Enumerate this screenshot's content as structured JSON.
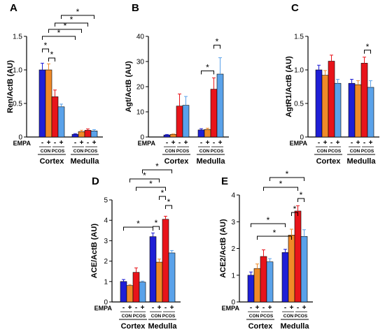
{
  "colors": {
    "con_minus": "#1f1fd6",
    "con_plus": "#f08a28",
    "pcos_minus": "#e8141a",
    "pcos_plus": "#5aa2ea",
    "axis": "#000000"
  },
  "labels": {
    "empa": "EMPA",
    "minus": "-",
    "plus": "+",
    "con": "CON",
    "pcos": "PCOS",
    "sig": "*"
  },
  "chart_data": [
    {
      "panel_letter": "A",
      "type": "bar",
      "ylabel": "Ren/ActB (AU)",
      "ylim": [
        0,
        1.5
      ],
      "yticks": [
        0,
        0.5,
        1.0,
        1.5
      ],
      "ytick_labels": [
        "0",
        "0.5",
        "1.0",
        "1.5"
      ],
      "regions": [
        "Cortex",
        "Medulla"
      ],
      "series": [
        {
          "group": "CON",
          "empa": "-",
          "values": [
            1.0,
            0.04
          ],
          "errors": [
            0.1,
            0.01
          ]
        },
        {
          "group": "CON",
          "empa": "+",
          "values": [
            1.0,
            0.08
          ],
          "errors": [
            0.09,
            0.02
          ]
        },
        {
          "group": "PCOS",
          "empa": "-",
          "values": [
            0.6,
            0.1
          ],
          "errors": [
            0.1,
            0.02
          ]
        },
        {
          "group": "PCOS",
          "empa": "+",
          "values": [
            0.45,
            0.09
          ],
          "errors": [
            0.04,
            0.02
          ]
        }
      ],
      "significance": [
        {
          "from": [
            0,
            0
          ],
          "to": [
            0,
            1
          ]
        },
        {
          "from": [
            0,
            1
          ],
          "to": [
            0,
            2
          ]
        },
        {
          "from": [
            0,
            0
          ],
          "to": [
            1,
            0
          ]
        },
        {
          "from": [
            0,
            1
          ],
          "to": [
            1,
            1
          ]
        },
        {
          "from": [
            0,
            2
          ],
          "to": [
            1,
            2
          ]
        },
        {
          "from": [
            0,
            3
          ],
          "to": [
            1,
            3
          ]
        }
      ]
    },
    {
      "panel_letter": "B",
      "type": "bar",
      "ylabel": "Agt/ActB (AU)",
      "ylim": [
        0,
        40
      ],
      "yticks": [
        0,
        10,
        20,
        30,
        40
      ],
      "ytick_labels": [
        "0",
        "10",
        "20",
        "30",
        "40"
      ],
      "regions": [
        "Cortex",
        "Medulla"
      ],
      "series": [
        {
          "group": "CON",
          "empa": "-",
          "values": [
            0.8,
            2.8
          ],
          "errors": [
            0.2,
            0.5
          ]
        },
        {
          "group": "CON",
          "empa": "+",
          "values": [
            1.0,
            3.0
          ],
          "errors": [
            0.2,
            0.5
          ]
        },
        {
          "group": "PCOS",
          "empa": "-",
          "values": [
            12.3,
            19.0
          ],
          "errors": [
            4.8,
            4.5
          ]
        },
        {
          "group": "PCOS",
          "empa": "+",
          "values": [
            12.6,
            25.0
          ],
          "errors": [
            3.5,
            6.5
          ]
        }
      ],
      "significance": [
        {
          "from": [
            1,
            0
          ],
          "to": [
            1,
            2
          ]
        },
        {
          "from": [
            1,
            2
          ],
          "to": [
            1,
            3
          ]
        }
      ]
    },
    {
      "panel_letter": "C",
      "type": "bar",
      "ylabel": "AgtR1/ActB (AU)",
      "ylim": [
        0,
        1.5
      ],
      "yticks": [
        0,
        0.5,
        1.0,
        1.5
      ],
      "ytick_labels": [
        "0",
        "0.5",
        "1.0",
        "1.5"
      ],
      "regions": [
        "Cortex",
        "Medulla"
      ],
      "series": [
        {
          "group": "CON",
          "empa": "-",
          "values": [
            1.0,
            0.8
          ],
          "errors": [
            0.07,
            0.06
          ]
        },
        {
          "group": "CON",
          "empa": "+",
          "values": [
            0.92,
            0.78
          ],
          "errors": [
            0.07,
            0.06
          ]
        },
        {
          "group": "PCOS",
          "empa": "-",
          "values": [
            1.13,
            1.1
          ],
          "errors": [
            0.09,
            0.09
          ]
        },
        {
          "group": "PCOS",
          "empa": "+",
          "values": [
            0.8,
            0.74
          ],
          "errors": [
            0.06,
            0.1
          ]
        }
      ],
      "significance": [
        {
          "from": [
            1,
            2
          ],
          "to": [
            1,
            3
          ]
        }
      ]
    },
    {
      "panel_letter": "D",
      "type": "bar",
      "ylabel": "ACE/ActB (AU)",
      "ylim": [
        0,
        5
      ],
      "yticks": [
        0,
        1,
        2,
        3,
        4,
        5
      ],
      "ytick_labels": [
        "0",
        "1",
        "2",
        "3",
        "4",
        "5"
      ],
      "regions": [
        "Cortex",
        "Medulla"
      ],
      "series": [
        {
          "group": "CON",
          "empa": "-",
          "values": [
            1.0,
            3.2
          ],
          "errors": [
            0.1,
            0.18
          ]
        },
        {
          "group": "CON",
          "empa": "+",
          "values": [
            0.8,
            1.95
          ],
          "errors": [
            0.05,
            0.15
          ]
        },
        {
          "group": "PCOS",
          "empa": "-",
          "values": [
            1.45,
            4.05
          ],
          "errors": [
            0.22,
            0.15
          ]
        },
        {
          "group": "PCOS",
          "empa": "+",
          "values": [
            0.97,
            2.4
          ],
          "errors": [
            0.05,
            0.12
          ]
        }
      ],
      "significance": [
        {
          "from": [
            0,
            0
          ],
          "to": [
            1,
            0
          ]
        },
        {
          "from": [
            1,
            0
          ],
          "to": [
            1,
            1
          ]
        },
        {
          "from": [
            1,
            2
          ],
          "to": [
            1,
            3
          ]
        },
        {
          "from": [
            1,
            1
          ],
          "to": [
            1,
            2
          ]
        },
        {
          "from": [
            0,
            2
          ],
          "to": [
            1,
            2
          ]
        },
        {
          "from": [
            0,
            1
          ],
          "to": [
            1,
            1
          ]
        },
        {
          "from": [
            0,
            3
          ],
          "to": [
            1,
            3
          ]
        }
      ]
    },
    {
      "panel_letter": "E",
      "type": "bar",
      "ylabel": "ACE2/ActB (AU)",
      "ylim": [
        0,
        4
      ],
      "yticks": [
        0,
        1,
        2,
        3,
        4
      ],
      "ytick_labels": [
        "0",
        "1",
        "2",
        "3",
        "4"
      ],
      "regions": [
        "Cortex",
        "Medulla"
      ],
      "series": [
        {
          "group": "CON",
          "empa": "-",
          "values": [
            1.0,
            1.85
          ],
          "errors": [
            0.12,
            0.12
          ]
        },
        {
          "group": "CON",
          "empa": "+",
          "values": [
            1.25,
            2.5
          ],
          "errors": [
            0.17,
            0.22
          ]
        },
        {
          "group": "PCOS",
          "empa": "-",
          "values": [
            1.7,
            3.4
          ],
          "errors": [
            0.25,
            0.2
          ]
        },
        {
          "group": "PCOS",
          "empa": "+",
          "values": [
            1.5,
            2.45
          ],
          "errors": [
            0.12,
            0.25
          ]
        }
      ],
      "significance": [
        {
          "from": [
            0,
            0
          ],
          "to": [
            1,
            0
          ]
        },
        {
          "from": [
            0,
            1
          ],
          "to": [
            1,
            1
          ]
        },
        {
          "from": [
            1,
            1
          ],
          "to": [
            1,
            2
          ]
        },
        {
          "from": [
            1,
            2
          ],
          "to": [
            1,
            3
          ]
        },
        {
          "from": [
            0,
            2
          ],
          "to": [
            1,
            2
          ]
        },
        {
          "from": [
            0,
            3
          ],
          "to": [
            1,
            3
          ]
        }
      ]
    }
  ]
}
